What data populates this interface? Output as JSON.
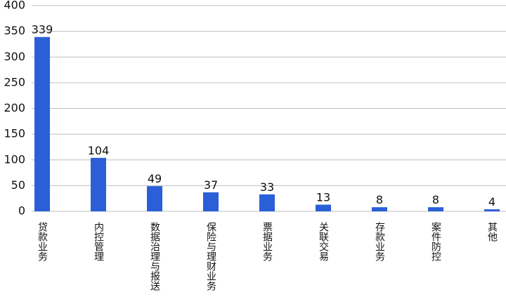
{
  "chart_data": {
    "type": "bar",
    "categories": [
      "贷款业务",
      "内控管理",
      "数据治理与报送",
      "保险与理财业务",
      "票据业务",
      "关联交易",
      "存款业务",
      "案件防控",
      "其他"
    ],
    "values": [
      339,
      104,
      49,
      37,
      33,
      13,
      8,
      8,
      4
    ],
    "color": "#2b5fd8",
    "ylim": [
      0,
      400
    ],
    "yticks": [
      0,
      50,
      100,
      150,
      200,
      250,
      300,
      350,
      400
    ],
    "grid": true
  }
}
